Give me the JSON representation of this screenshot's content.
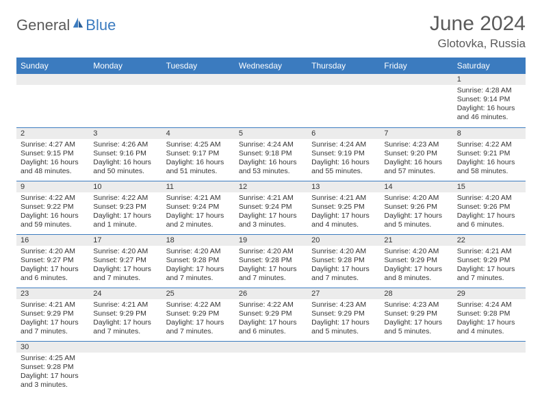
{
  "logo": {
    "general": "General",
    "blue": "Blue"
  },
  "title": "June 2024",
  "location": "Glotovka, Russia",
  "colors": {
    "header_bg": "#3b7bbf",
    "header_text": "#ffffff",
    "daynum_bg": "#ececec",
    "border": "#3b7bbf",
    "text": "#333333",
    "logo_gray": "#5a5a5a",
    "logo_blue": "#3b7bbf"
  },
  "weekdays": [
    "Sunday",
    "Monday",
    "Tuesday",
    "Wednesday",
    "Thursday",
    "Friday",
    "Saturday"
  ],
  "weeks": [
    [
      {
        "n": "",
        "sr": "",
        "ss": "",
        "dl": ""
      },
      {
        "n": "",
        "sr": "",
        "ss": "",
        "dl": ""
      },
      {
        "n": "",
        "sr": "",
        "ss": "",
        "dl": ""
      },
      {
        "n": "",
        "sr": "",
        "ss": "",
        "dl": ""
      },
      {
        "n": "",
        "sr": "",
        "ss": "",
        "dl": ""
      },
      {
        "n": "",
        "sr": "",
        "ss": "",
        "dl": ""
      },
      {
        "n": "1",
        "sr": "Sunrise: 4:28 AM",
        "ss": "Sunset: 9:14 PM",
        "dl": "Daylight: 16 hours and 46 minutes."
      }
    ],
    [
      {
        "n": "2",
        "sr": "Sunrise: 4:27 AM",
        "ss": "Sunset: 9:15 PM",
        "dl": "Daylight: 16 hours and 48 minutes."
      },
      {
        "n": "3",
        "sr": "Sunrise: 4:26 AM",
        "ss": "Sunset: 9:16 PM",
        "dl": "Daylight: 16 hours and 50 minutes."
      },
      {
        "n": "4",
        "sr": "Sunrise: 4:25 AM",
        "ss": "Sunset: 9:17 PM",
        "dl": "Daylight: 16 hours and 51 minutes."
      },
      {
        "n": "5",
        "sr": "Sunrise: 4:24 AM",
        "ss": "Sunset: 9:18 PM",
        "dl": "Daylight: 16 hours and 53 minutes."
      },
      {
        "n": "6",
        "sr": "Sunrise: 4:24 AM",
        "ss": "Sunset: 9:19 PM",
        "dl": "Daylight: 16 hours and 55 minutes."
      },
      {
        "n": "7",
        "sr": "Sunrise: 4:23 AM",
        "ss": "Sunset: 9:20 PM",
        "dl": "Daylight: 16 hours and 57 minutes."
      },
      {
        "n": "8",
        "sr": "Sunrise: 4:22 AM",
        "ss": "Sunset: 9:21 PM",
        "dl": "Daylight: 16 hours and 58 minutes."
      }
    ],
    [
      {
        "n": "9",
        "sr": "Sunrise: 4:22 AM",
        "ss": "Sunset: 9:22 PM",
        "dl": "Daylight: 16 hours and 59 minutes."
      },
      {
        "n": "10",
        "sr": "Sunrise: 4:22 AM",
        "ss": "Sunset: 9:23 PM",
        "dl": "Daylight: 17 hours and 1 minute."
      },
      {
        "n": "11",
        "sr": "Sunrise: 4:21 AM",
        "ss": "Sunset: 9:24 PM",
        "dl": "Daylight: 17 hours and 2 minutes."
      },
      {
        "n": "12",
        "sr": "Sunrise: 4:21 AM",
        "ss": "Sunset: 9:24 PM",
        "dl": "Daylight: 17 hours and 3 minutes."
      },
      {
        "n": "13",
        "sr": "Sunrise: 4:21 AM",
        "ss": "Sunset: 9:25 PM",
        "dl": "Daylight: 17 hours and 4 minutes."
      },
      {
        "n": "14",
        "sr": "Sunrise: 4:20 AM",
        "ss": "Sunset: 9:26 PM",
        "dl": "Daylight: 17 hours and 5 minutes."
      },
      {
        "n": "15",
        "sr": "Sunrise: 4:20 AM",
        "ss": "Sunset: 9:26 PM",
        "dl": "Daylight: 17 hours and 6 minutes."
      }
    ],
    [
      {
        "n": "16",
        "sr": "Sunrise: 4:20 AM",
        "ss": "Sunset: 9:27 PM",
        "dl": "Daylight: 17 hours and 6 minutes."
      },
      {
        "n": "17",
        "sr": "Sunrise: 4:20 AM",
        "ss": "Sunset: 9:27 PM",
        "dl": "Daylight: 17 hours and 7 minutes."
      },
      {
        "n": "18",
        "sr": "Sunrise: 4:20 AM",
        "ss": "Sunset: 9:28 PM",
        "dl": "Daylight: 17 hours and 7 minutes."
      },
      {
        "n": "19",
        "sr": "Sunrise: 4:20 AM",
        "ss": "Sunset: 9:28 PM",
        "dl": "Daylight: 17 hours and 7 minutes."
      },
      {
        "n": "20",
        "sr": "Sunrise: 4:20 AM",
        "ss": "Sunset: 9:28 PM",
        "dl": "Daylight: 17 hours and 7 minutes."
      },
      {
        "n": "21",
        "sr": "Sunrise: 4:20 AM",
        "ss": "Sunset: 9:29 PM",
        "dl": "Daylight: 17 hours and 8 minutes."
      },
      {
        "n": "22",
        "sr": "Sunrise: 4:21 AM",
        "ss": "Sunset: 9:29 PM",
        "dl": "Daylight: 17 hours and 7 minutes."
      }
    ],
    [
      {
        "n": "23",
        "sr": "Sunrise: 4:21 AM",
        "ss": "Sunset: 9:29 PM",
        "dl": "Daylight: 17 hours and 7 minutes."
      },
      {
        "n": "24",
        "sr": "Sunrise: 4:21 AM",
        "ss": "Sunset: 9:29 PM",
        "dl": "Daylight: 17 hours and 7 minutes."
      },
      {
        "n": "25",
        "sr": "Sunrise: 4:22 AM",
        "ss": "Sunset: 9:29 PM",
        "dl": "Daylight: 17 hours and 7 minutes."
      },
      {
        "n": "26",
        "sr": "Sunrise: 4:22 AM",
        "ss": "Sunset: 9:29 PM",
        "dl": "Daylight: 17 hours and 6 minutes."
      },
      {
        "n": "27",
        "sr": "Sunrise: 4:23 AM",
        "ss": "Sunset: 9:29 PM",
        "dl": "Daylight: 17 hours and 5 minutes."
      },
      {
        "n": "28",
        "sr": "Sunrise: 4:23 AM",
        "ss": "Sunset: 9:29 PM",
        "dl": "Daylight: 17 hours and 5 minutes."
      },
      {
        "n": "29",
        "sr": "Sunrise: 4:24 AM",
        "ss": "Sunset: 9:28 PM",
        "dl": "Daylight: 17 hours and 4 minutes."
      }
    ],
    [
      {
        "n": "30",
        "sr": "Sunrise: 4:25 AM",
        "ss": "Sunset: 9:28 PM",
        "dl": "Daylight: 17 hours and 3 minutes."
      },
      {
        "n": "",
        "sr": "",
        "ss": "",
        "dl": ""
      },
      {
        "n": "",
        "sr": "",
        "ss": "",
        "dl": ""
      },
      {
        "n": "",
        "sr": "",
        "ss": "",
        "dl": ""
      },
      {
        "n": "",
        "sr": "",
        "ss": "",
        "dl": ""
      },
      {
        "n": "",
        "sr": "",
        "ss": "",
        "dl": ""
      },
      {
        "n": "",
        "sr": "",
        "ss": "",
        "dl": ""
      }
    ]
  ]
}
